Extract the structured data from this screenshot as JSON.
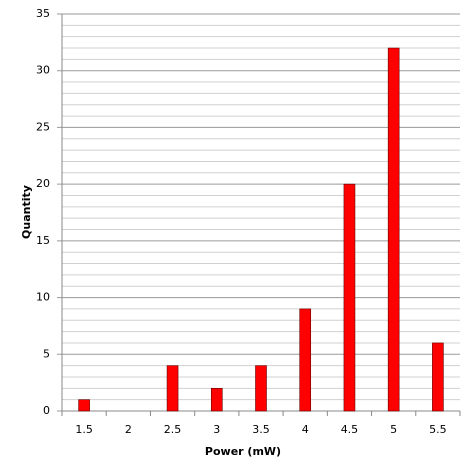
{
  "chart_data": {
    "type": "bar",
    "x_label": "Power (mW)",
    "y_label": "Quantity",
    "categories": [
      "1.5",
      "2",
      "2.5",
      "3",
      "3.5",
      "4",
      "4.5",
      "5",
      "5.5"
    ],
    "values": [
      1,
      0,
      4,
      2,
      4,
      9,
      20,
      32,
      6
    ],
    "color": "#ff0000",
    "ylim": [
      0,
      35
    ],
    "yticks": [
      0,
      5,
      10,
      15,
      20,
      25,
      30,
      35
    ],
    "grid": true
  }
}
